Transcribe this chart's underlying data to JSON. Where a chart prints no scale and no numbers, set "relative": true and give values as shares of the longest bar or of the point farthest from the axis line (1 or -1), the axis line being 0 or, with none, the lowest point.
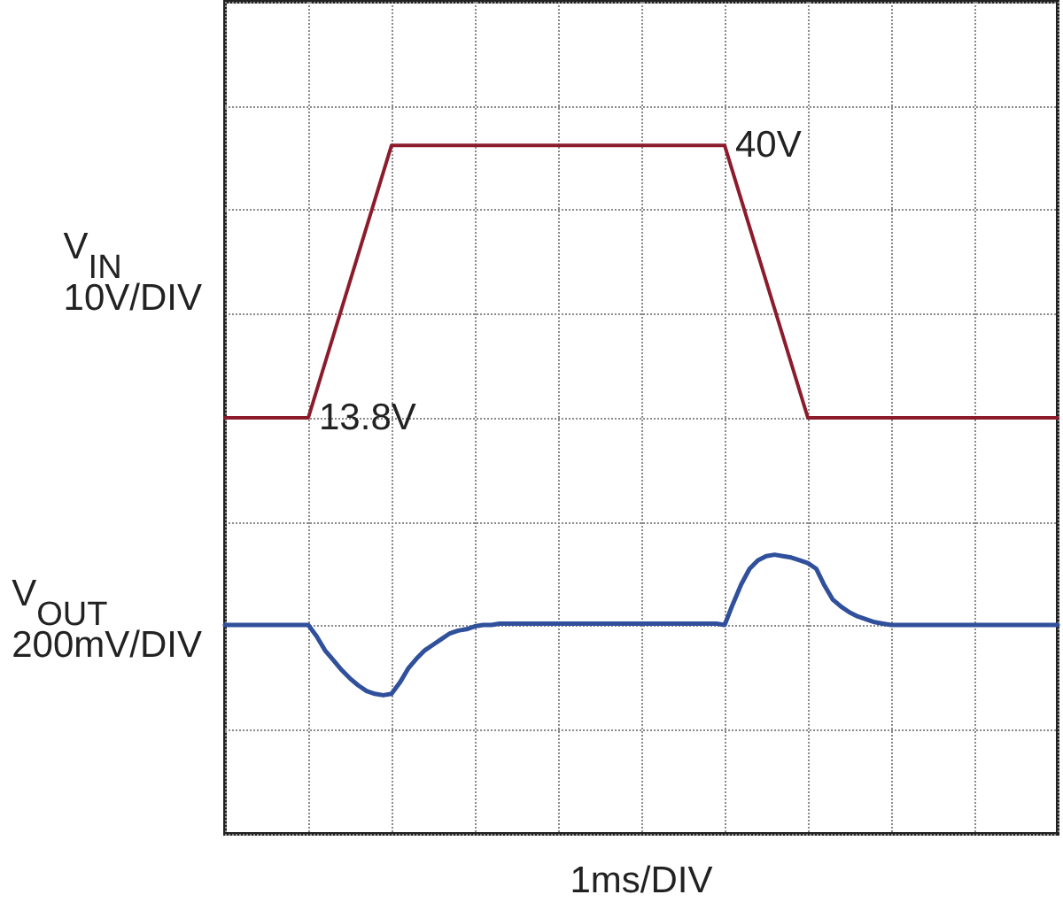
{
  "chart_data": [
    {
      "type": "line",
      "ylabel": "V$_{IN}$ 10V/DIV",
      "xlabel": "1ms/DIV",
      "categories": [
        null,
        null,
        null,
        null,
        null,
        null,
        null,
        null,
        null,
        null,
        null
      ],
      "values": [
        13.8,
        13.8,
        40,
        40,
        40,
        40,
        40,
        13.8,
        13.8,
        13.8,
        13.8
      ],
      "color": "#8c1c2c",
      "value_labels": [
        null,
        "13.8V",
        null,
        null,
        null,
        null,
        "40V",
        null,
        null,
        null,
        null
      ],
      "ylim": [
        -26.2,
        53.8
      ],
      "yticks": [
        {
          "value": -26.2,
          "label": null
        },
        {
          "value": -16.2,
          "label": null
        },
        {
          "value": -6.2,
          "label": null
        },
        {
          "value": 3.8,
          "label": null
        },
        {
          "value": 13.8,
          "label": null
        },
        {
          "value": 23.8,
          "label": null
        },
        {
          "value": 33.8,
          "label": null
        },
        {
          "value": 43.8,
          "label": null
        },
        {
          "value": 53.8,
          "label": null
        }
      ],
      "grid": true,
      "marker": "none",
      "line_style": "solid"
    },
    {
      "type": "line",
      "ylabel": "V$_{OUT}$ 200mV/DIV",
      "categories": [
        null,
        null,
        null,
        null,
        null,
        null,
        null,
        null,
        null,
        null,
        null,
        null,
        null,
        null,
        null,
        null,
        null,
        null,
        null,
        null,
        null,
        null,
        null,
        null,
        null,
        null,
        null,
        null,
        null,
        null,
        null,
        null,
        null,
        null,
        null,
        null,
        null,
        null,
        null,
        null,
        null,
        null,
        null,
        null,
        null,
        null,
        null,
        null,
        null,
        null,
        null,
        null,
        null,
        null,
        null,
        null,
        null,
        null,
        null,
        null,
        null,
        null,
        null,
        null,
        null,
        null,
        null,
        null,
        null,
        null,
        null,
        null,
        null,
        null,
        null,
        null,
        null,
        null,
        null,
        null,
        null,
        null,
        null,
        null,
        null,
        null,
        null,
        null,
        null,
        null,
        null,
        null,
        null,
        null,
        null,
        null,
        null,
        null,
        null,
        null,
        null
      ],
      "values": [
        0.5,
        0.5,
        0.5,
        0.5,
        0.5,
        0.5,
        0.5,
        0.5,
        0.5,
        0.5,
        0.5,
        0.42,
        0.32,
        0.25,
        0.18,
        0.12,
        0.07,
        0.03,
        0.01,
        0,
        0.01,
        0.09,
        0.19,
        0.26,
        0.32,
        0.36,
        0.4,
        0.44,
        0.46,
        0.47,
        0.49,
        0.5,
        0.5,
        0.51,
        0.51,
        0.51,
        0.51,
        0.51,
        0.51,
        0.51,
        0.51,
        0.51,
        0.51,
        0.51,
        0.51,
        0.51,
        0.51,
        0.51,
        0.51,
        0.51,
        0.51,
        0.51,
        0.51,
        0.51,
        0.51,
        0.51,
        0.51,
        0.51,
        0.51,
        0.51,
        0.5,
        0.65,
        0.79,
        0.9,
        0.96,
        0.99,
        1,
        0.99,
        0.98,
        0.96,
        0.94,
        0.9,
        0.78,
        0.68,
        0.63,
        0.59,
        0.56,
        0.54,
        0.52,
        0.51,
        0.5,
        0.5,
        0.5,
        0.5,
        0.5,
        0.5,
        0.5,
        0.5,
        0.5,
        0.5,
        0.5,
        0.5,
        0.5,
        0.5,
        0.5,
        0.5,
        0.5,
        0.5,
        0.5,
        0.5,
        0.5
      ],
      "color": "#30509c",
      "relative": true,
      "marker": "none",
      "line_style": "solid"
    }
  ]
}
